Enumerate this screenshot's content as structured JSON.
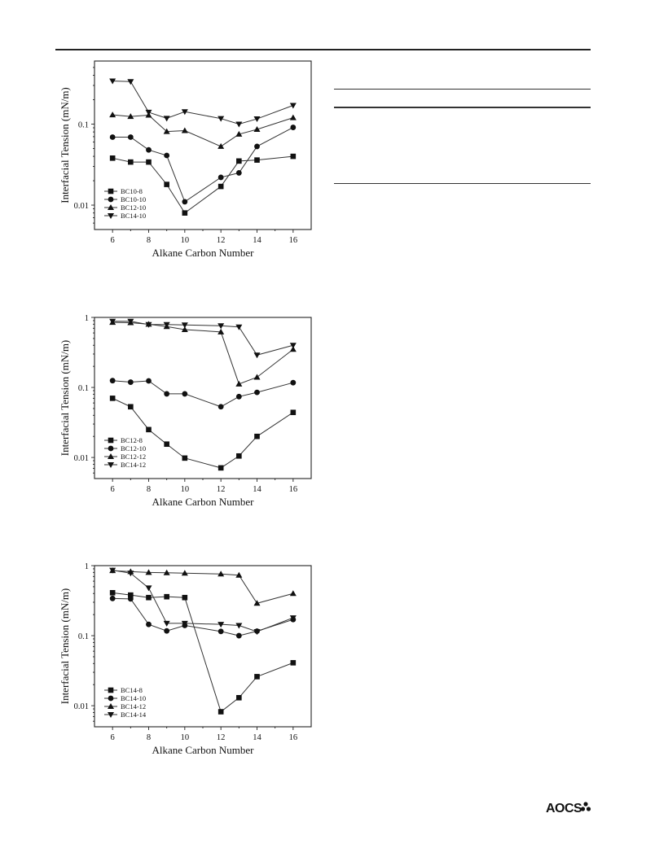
{
  "page": {
    "logo_text": "AOCS",
    "logo_icon": "aocs-cluster-icon"
  },
  "chart_data": [
    {
      "type": "line",
      "title": "",
      "xlabel": "Alkane Carbon Number",
      "ylabel": "Interfacial Tension  (mN/m)",
      "yscale": "log",
      "xlim": [
        5,
        17
      ],
      "ylim": [
        0.005,
        0.6
      ],
      "xticks": [
        6,
        8,
        10,
        12,
        14,
        16
      ],
      "yticks": [
        0.01,
        0.1
      ],
      "ytick_labels": [
        "0.01",
        "0.1"
      ],
      "legend_position": "bottom-left",
      "series": [
        {
          "name": "BC10-8",
          "marker": "square",
          "x": [
            6,
            7,
            8,
            9,
            10,
            12,
            13,
            14,
            16
          ],
          "y": [
            0.038,
            0.034,
            0.034,
            0.018,
            0.008,
            0.017,
            0.035,
            0.036,
            0.04
          ]
        },
        {
          "name": "BC10-10",
          "marker": "circle",
          "x": [
            6,
            7,
            8,
            9,
            10,
            12,
            13,
            14,
            16
          ],
          "y": [
            0.069,
            0.069,
            0.048,
            0.041,
            0.011,
            0.022,
            0.025,
            0.053,
            0.091
          ]
        },
        {
          "name": "BC12-10",
          "marker": "triangle-up",
          "x": [
            6,
            7,
            8,
            9,
            10,
            12,
            13,
            14,
            16
          ],
          "y": [
            0.13,
            0.124,
            0.129,
            0.081,
            0.083,
            0.053,
            0.075,
            0.086,
            0.12
          ]
        },
        {
          "name": "BC14-10",
          "marker": "triangle-down",
          "x": [
            6,
            7,
            8,
            9,
            10,
            12,
            13,
            14,
            16
          ],
          "y": [
            0.34,
            0.335,
            0.14,
            0.118,
            0.142,
            0.117,
            0.1,
            0.116,
            0.17
          ]
        }
      ]
    },
    {
      "type": "line",
      "title": "",
      "xlabel": "Alkane Carbon Number",
      "ylabel": "Interfacial Tension  (mN/m)",
      "yscale": "log",
      "xlim": [
        5,
        17
      ],
      "ylim": [
        0.005,
        1
      ],
      "xticks": [
        6,
        8,
        10,
        12,
        14,
        16
      ],
      "yticks": [
        0.01,
        0.1,
        1
      ],
      "ytick_labels": [
        "0.01",
        "0.1",
        "1"
      ],
      "legend_position": "bottom-left",
      "series": [
        {
          "name": "BC12-8",
          "marker": "square",
          "x": [
            6,
            7,
            8,
            9,
            10,
            12,
            13,
            14,
            16
          ],
          "y": [
            0.07,
            0.053,
            0.025,
            0.0155,
            0.0098,
            0.0071,
            0.0105,
            0.02,
            0.044
          ]
        },
        {
          "name": "BC12-10",
          "marker": "circle",
          "x": [
            6,
            7,
            8,
            9,
            10,
            12,
            13,
            14,
            16
          ],
          "y": [
            0.125,
            0.119,
            0.124,
            0.081,
            0.081,
            0.053,
            0.074,
            0.085,
            0.117
          ]
        },
        {
          "name": "BC12-12",
          "marker": "triangle-up",
          "x": [
            6,
            7,
            8,
            9,
            10,
            12,
            13,
            14,
            16
          ],
          "y": [
            0.85,
            0.84,
            0.8,
            0.74,
            0.67,
            0.62,
            0.112,
            0.14,
            0.35
          ]
        },
        {
          "name": "BC14-12",
          "marker": "triangle-down",
          "x": [
            6,
            7,
            8,
            9,
            10,
            12,
            13,
            14,
            16
          ],
          "y": [
            0.88,
            0.88,
            0.79,
            0.79,
            0.78,
            0.76,
            0.73,
            0.29,
            0.4
          ]
        }
      ]
    },
    {
      "type": "line",
      "title": "",
      "xlabel": "Alkane Carbon Number",
      "ylabel": "Interfacial Tension  (mN/m)",
      "yscale": "log",
      "xlim": [
        5,
        17
      ],
      "ylim": [
        0.005,
        1
      ],
      "xticks": [
        6,
        8,
        10,
        12,
        14,
        16
      ],
      "yticks": [
        0.01,
        0.1,
        1
      ],
      "ytick_labels": [
        "0.01",
        "0.1",
        "1"
      ],
      "legend_position": "bottom-left",
      "series": [
        {
          "name": "BC14-8",
          "marker": "square",
          "x": [
            6,
            7,
            8,
            9,
            10,
            12,
            13,
            14,
            16
          ],
          "y": [
            0.41,
            0.38,
            0.35,
            0.36,
            0.35,
            0.0082,
            0.013,
            0.026,
            0.041
          ]
        },
        {
          "name": "BC14-10",
          "marker": "circle",
          "x": [
            6,
            7,
            8,
            9,
            10,
            12,
            13,
            14,
            16
          ],
          "y": [
            0.34,
            0.335,
            0.145,
            0.117,
            0.14,
            0.115,
            0.1,
            0.116,
            0.17
          ]
        },
        {
          "name": "BC14-12",
          "marker": "triangle-up",
          "x": [
            6,
            7,
            8,
            9,
            10,
            12,
            13,
            14,
            16
          ],
          "y": [
            0.85,
            0.82,
            0.8,
            0.79,
            0.78,
            0.76,
            0.73,
            0.29,
            0.4
          ]
        },
        {
          "name": "BC14-14",
          "marker": "triangle-down",
          "x": [
            6,
            7,
            8,
            9,
            10,
            12,
            13,
            14,
            16
          ],
          "y": [
            0.86,
            0.78,
            0.48,
            0.15,
            0.15,
            0.145,
            0.14,
            0.114,
            0.18
          ]
        }
      ]
    }
  ]
}
